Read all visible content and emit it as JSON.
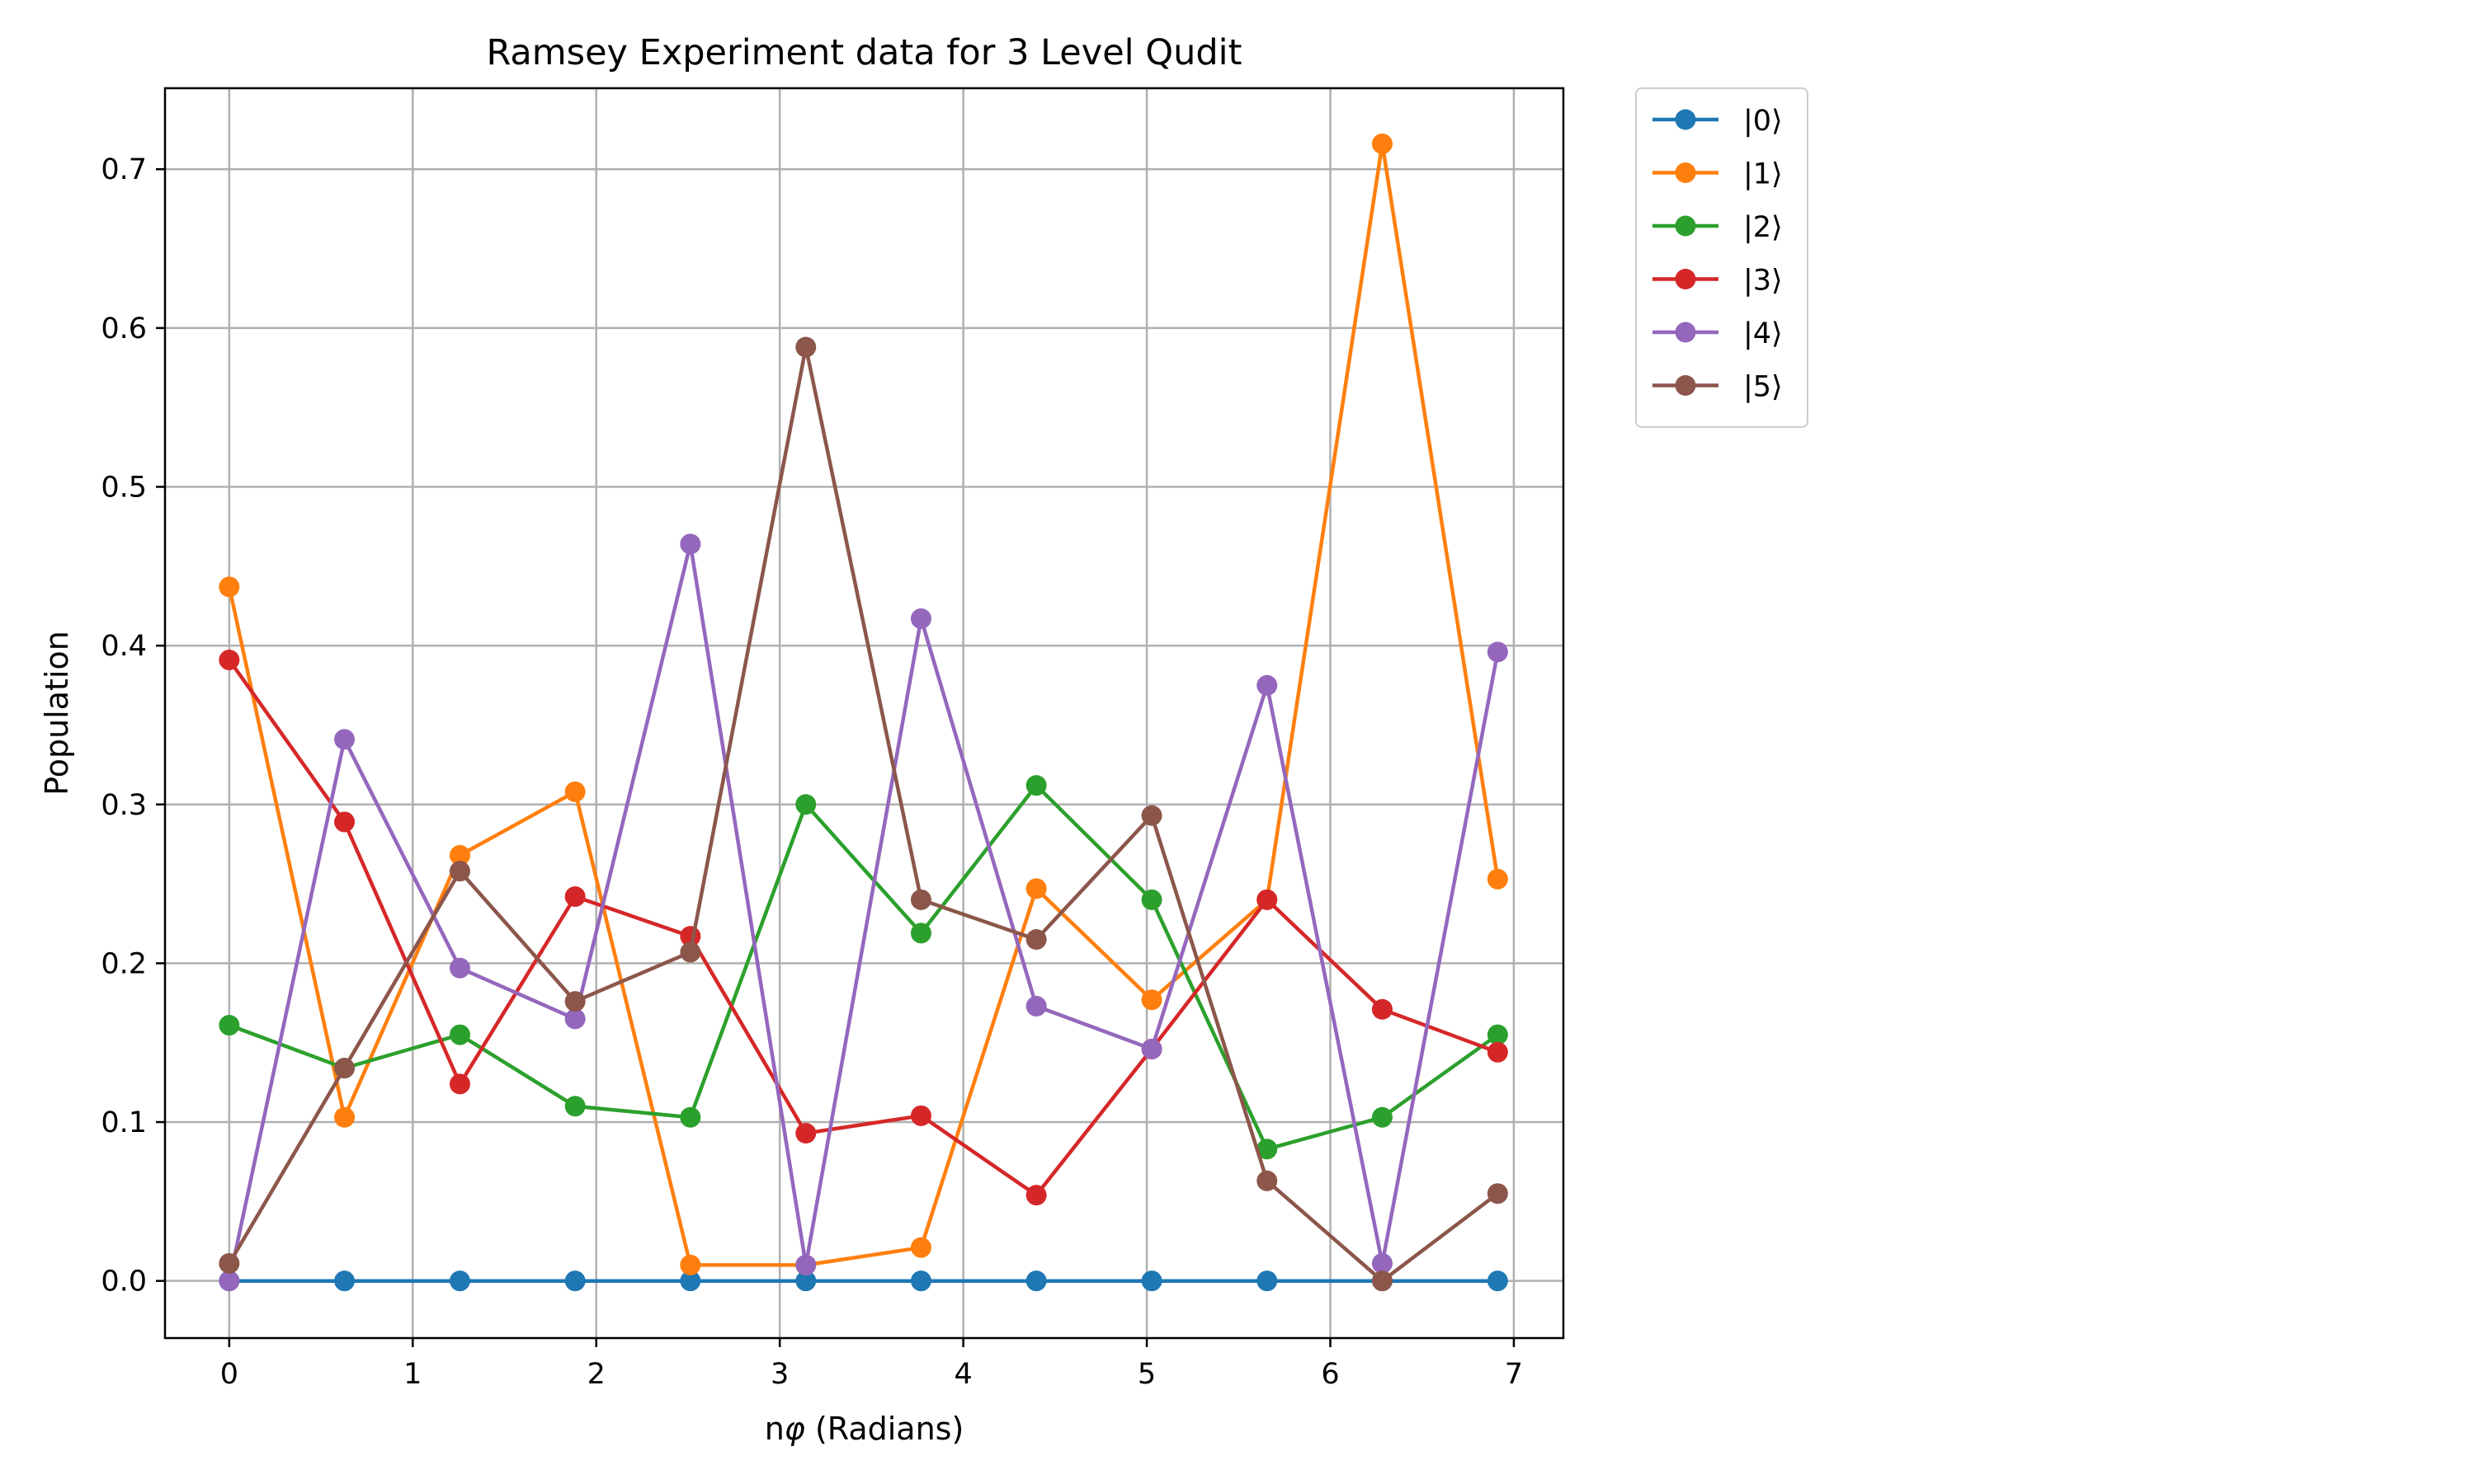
{
  "chart_data": {
    "type": "line",
    "title": "Ramsey Experiment data for 3 Level Qudit",
    "xlabel_prefix": "n",
    "xlabel_symbol": "φ",
    "xlabel_suffix": " (Radians)",
    "ylabel": "Population",
    "xlim": [
      -0.35,
      7.27
    ],
    "ylim": [
      -0.036,
      0.751
    ],
    "xticks": [
      0,
      1,
      2,
      3,
      4,
      5,
      6,
      7
    ],
    "xtick_labels": [
      "0",
      "1",
      "2",
      "3",
      "4",
      "5",
      "6",
      "7"
    ],
    "yticks": [
      0.0,
      0.1,
      0.2,
      0.3,
      0.4,
      0.5,
      0.6,
      0.7
    ],
    "ytick_labels": [
      "0.0",
      "0.1",
      "0.2",
      "0.3",
      "0.4",
      "0.5",
      "0.6",
      "0.7"
    ],
    "grid": true,
    "legend_position": "outside-upper-right",
    "x": [
      0,
      0.628,
      1.257,
      1.885,
      2.513,
      3.142,
      3.77,
      4.398,
      5.027,
      5.655,
      6.283,
      6.912
    ],
    "series": [
      {
        "name": "|0⟩",
        "color": "#1f77b4",
        "values": [
          0,
          0,
          0,
          0,
          0,
          0,
          0,
          0,
          0,
          0,
          0,
          0
        ]
      },
      {
        "name": "|1⟩",
        "color": "#ff7f0e",
        "values": [
          0.437,
          0.103,
          0.268,
          0.308,
          0.01,
          0.01,
          0.021,
          0.247,
          0.177,
          0.24,
          0.716,
          0.253
        ]
      },
      {
        "name": "|2⟩",
        "color": "#2ca02c",
        "values": [
          0.161,
          0.134,
          0.155,
          0.11,
          0.103,
          0.3,
          0.219,
          0.312,
          0.24,
          0.083,
          0.103,
          0.155
        ]
      },
      {
        "name": "|3⟩",
        "color": "#d62728",
        "values": [
          0.391,
          0.289,
          0.124,
          0.242,
          0.217,
          0.093,
          0.104,
          0.054,
          0.146,
          0.24,
          0.171,
          0.144
        ]
      },
      {
        "name": "|4⟩",
        "color": "#9467bd",
        "values": [
          0.0,
          0.341,
          0.197,
          0.165,
          0.464,
          0.01,
          0.417,
          0.173,
          0.146,
          0.375,
          0.011,
          0.396
        ]
      },
      {
        "name": "|5⟩",
        "color": "#8c564b",
        "values": [
          0.011,
          0.134,
          0.258,
          0.176,
          0.207,
          0.588,
          0.24,
          0.215,
          0.293,
          0.063,
          0.0,
          0.055
        ]
      }
    ]
  }
}
